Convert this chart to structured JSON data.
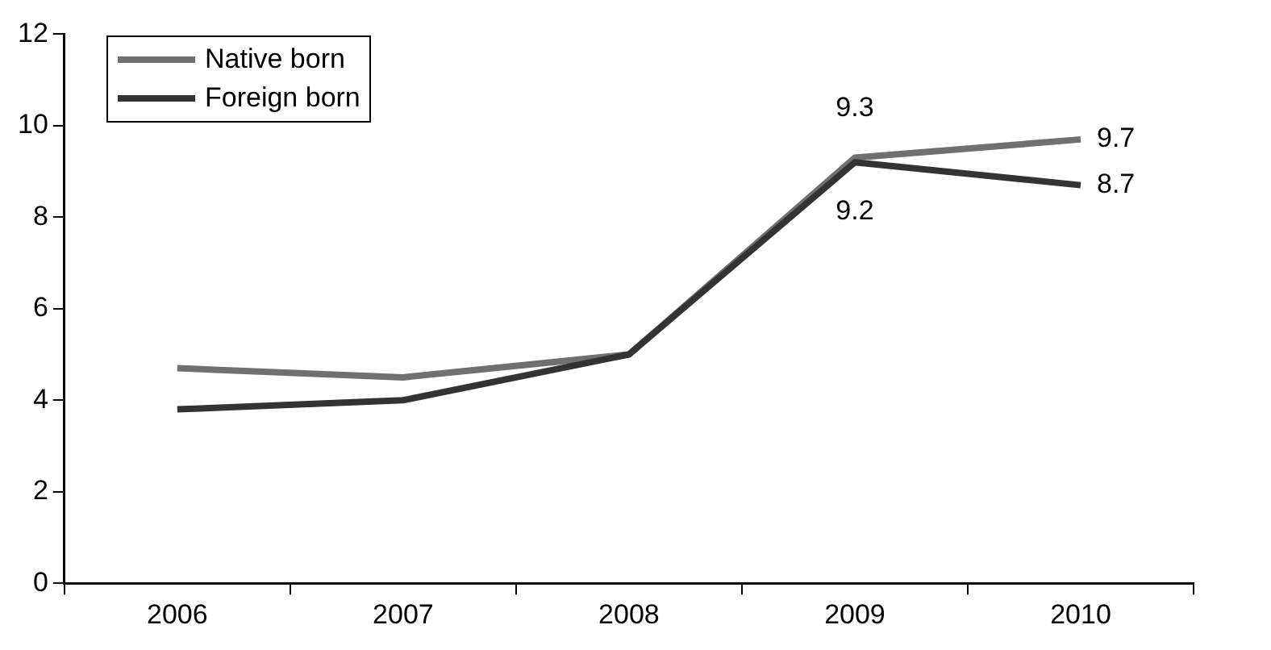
{
  "chart_data": {
    "type": "line",
    "categories": [
      "2006",
      "2007",
      "2008",
      "2009",
      "2010"
    ],
    "series": [
      {
        "name": "Native born",
        "color": "#707070",
        "values": [
          4.7,
          4.5,
          5.0,
          9.3,
          9.7
        ],
        "value_labels": [
          null,
          null,
          null,
          "9.3",
          "9.7"
        ]
      },
      {
        "name": "Foreign born",
        "color": "#333333",
        "values": [
          3.8,
          4.0,
          5.0,
          9.2,
          8.7
        ],
        "value_labels": [
          null,
          null,
          null,
          "9.2",
          "8.7"
        ]
      }
    ],
    "ylim": [
      0,
      12
    ],
    "yticks": [
      0,
      2,
      4,
      6,
      8,
      10,
      12
    ],
    "grid": false,
    "legend": "top left",
    "marker": "none",
    "line_style": "solid"
  }
}
